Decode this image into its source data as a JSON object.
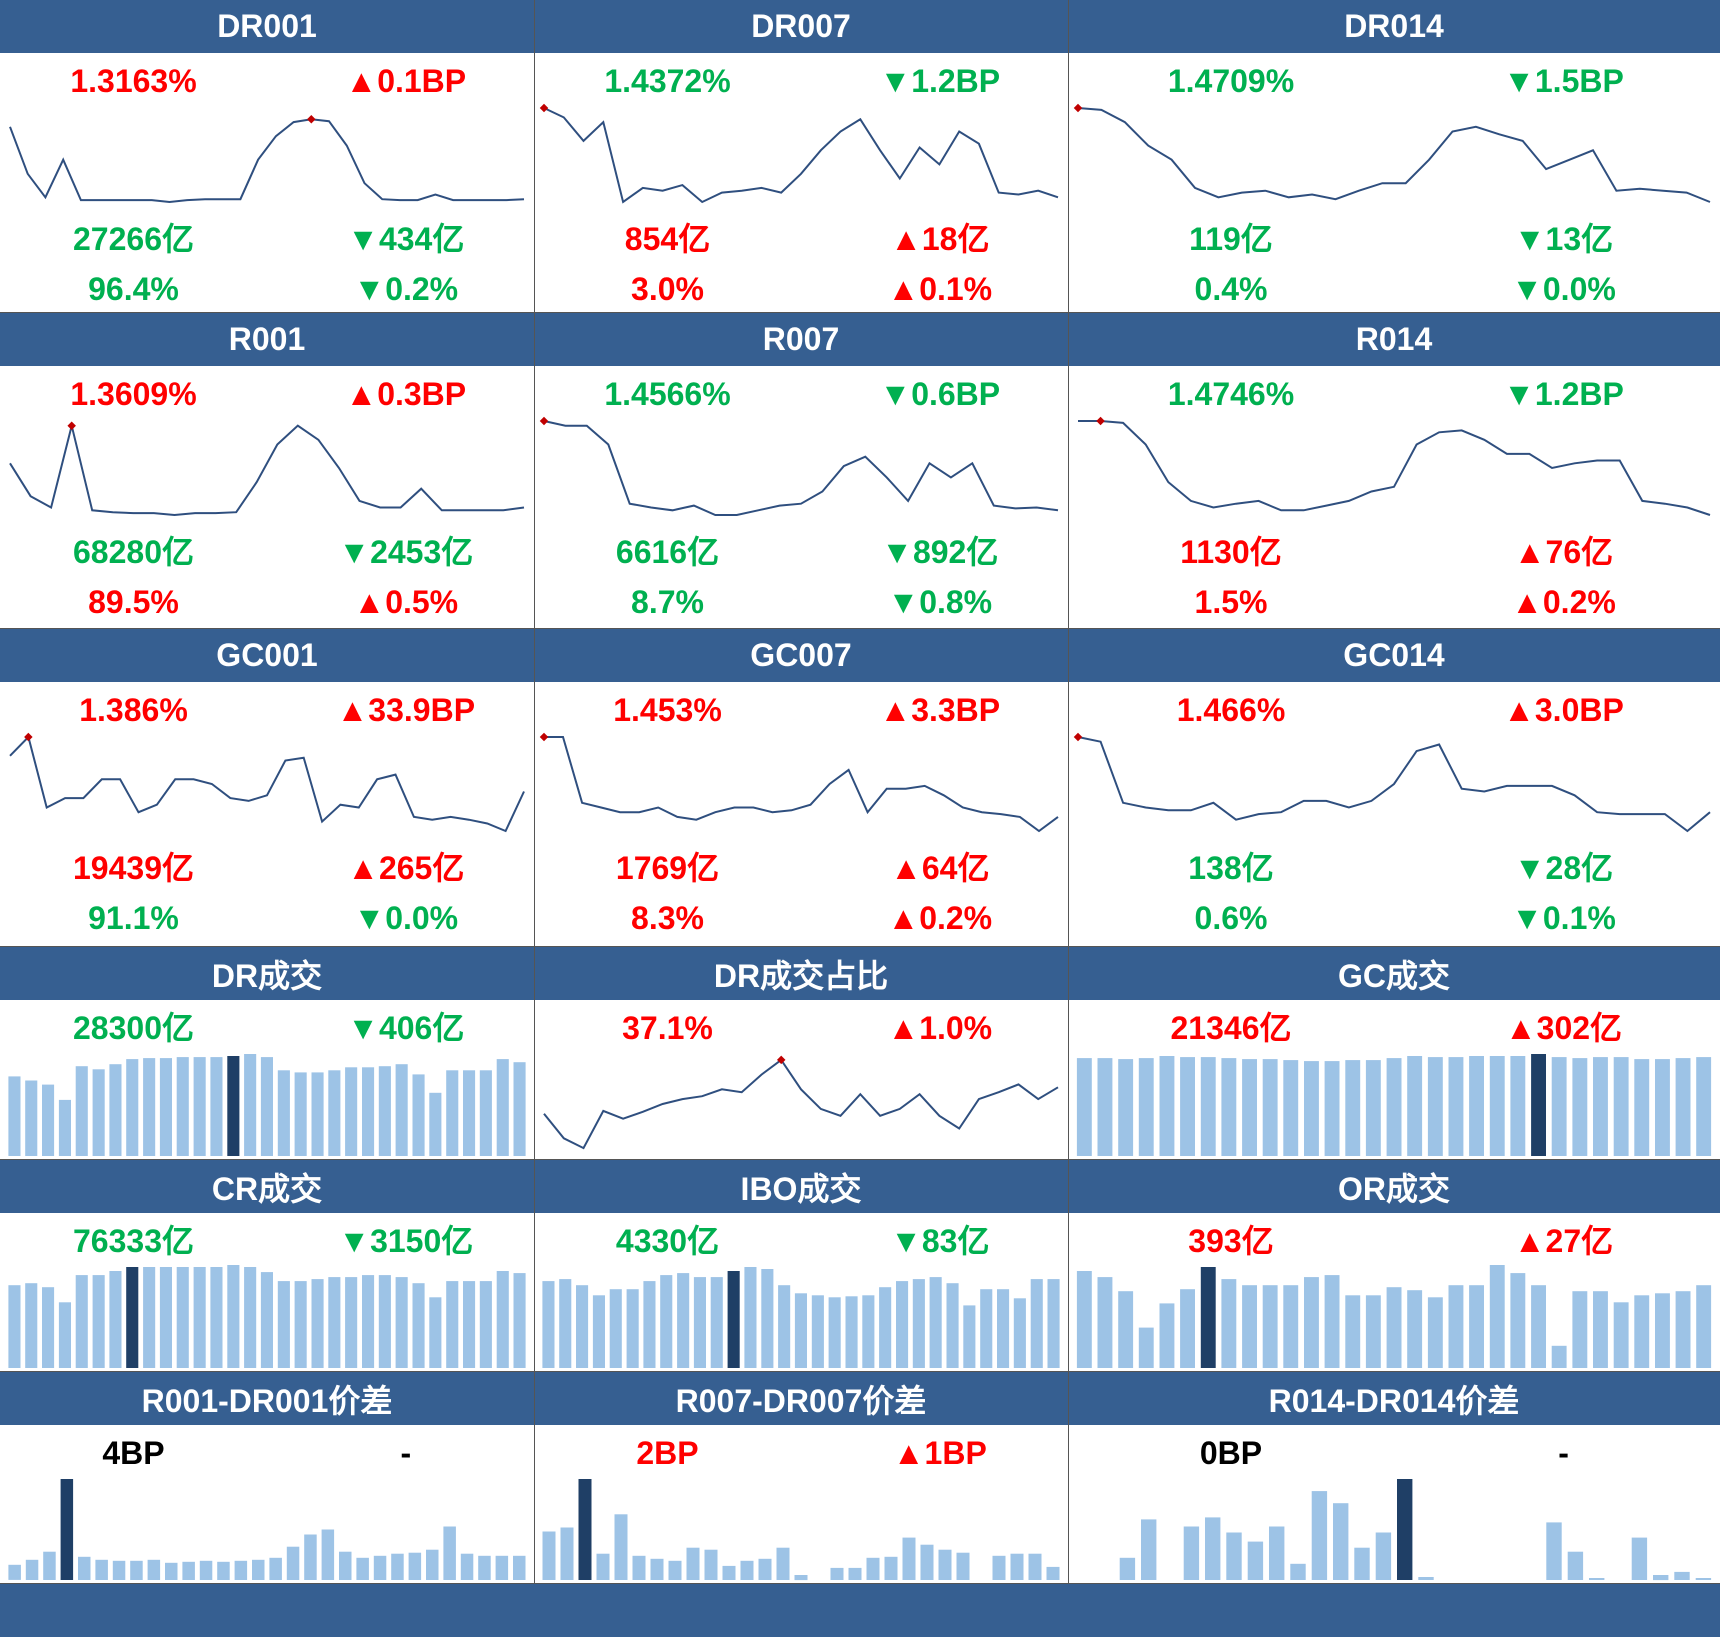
{
  "colors": {
    "header_bg": "#365f91",
    "header_text": "#ffffff",
    "up": "#ff0000",
    "down": "#00b050",
    "neutral": "#000000",
    "line": "#2f4f7f",
    "marker": "#c00000",
    "bar": "#9dc3e6",
    "bar_highlight": "#1f3f66"
  },
  "panels": [
    {
      "title": "DR001",
      "rate": {
        "text": "1.3163%",
        "dir": "up"
      },
      "rate_change": {
        "text": "▲0.1BP",
        "dir": "up"
      },
      "volume": {
        "text": "27266亿",
        "dir": "down"
      },
      "volume_change": {
        "text": "▼434亿",
        "dir": "down"
      },
      "share": {
        "text": "96.4%",
        "dir": "down"
      },
      "share_change": {
        "text": "▼0.2%",
        "dir": "down"
      },
      "chart_data": {
        "type": "line",
        "values": [
          0.8,
          0.3,
          0.05,
          0.45,
          0.02,
          0.02,
          0.02,
          0.02,
          0.02,
          0.0,
          0.02,
          0.03,
          0.03,
          0.03,
          0.45,
          0.7,
          0.85,
          0.88,
          0.86,
          0.6,
          0.2,
          0.03,
          0.02,
          0.02,
          0.08,
          0.02,
          0.02,
          0.02,
          0.02,
          0.03
        ],
        "marker_index": 17
      }
    },
    {
      "title": "DR007",
      "rate": {
        "text": "1.4372%",
        "dir": "down"
      },
      "rate_change": {
        "text": "▼1.2BP",
        "dir": "down"
      },
      "volume": {
        "text": "854亿",
        "dir": "up"
      },
      "volume_change": {
        "text": "▲18亿",
        "dir": "up"
      },
      "share": {
        "text": "3.0%",
        "dir": "up"
      },
      "share_change": {
        "text": "▲0.1%",
        "dir": "up"
      },
      "chart_data": {
        "type": "line",
        "values": [
          1.0,
          0.9,
          0.65,
          0.85,
          0.0,
          0.15,
          0.12,
          0.18,
          0.0,
          0.1,
          0.12,
          0.15,
          0.1,
          0.3,
          0.55,
          0.75,
          0.88,
          0.55,
          0.25,
          0.58,
          0.4,
          0.75,
          0.62,
          0.1,
          0.08,
          0.12,
          0.05
        ],
        "marker_index": 0
      }
    },
    {
      "title": "DR014",
      "rate": {
        "text": "1.4709%",
        "dir": "down"
      },
      "rate_change": {
        "text": "▼1.5BP",
        "dir": "down"
      },
      "volume": {
        "text": "119亿",
        "dir": "down"
      },
      "volume_change": {
        "text": "▼13亿",
        "dir": "down"
      },
      "share": {
        "text": "0.4%",
        "dir": "down"
      },
      "share_change": {
        "text": "▼0.0%",
        "dir": "down"
      },
      "chart_data": {
        "type": "line",
        "values": [
          1.0,
          0.98,
          0.85,
          0.6,
          0.45,
          0.15,
          0.05,
          0.1,
          0.12,
          0.05,
          0.08,
          0.03,
          0.12,
          0.2,
          0.2,
          0.45,
          0.75,
          0.8,
          0.72,
          0.65,
          0.35,
          0.45,
          0.55,
          0.12,
          0.14,
          0.12,
          0.1,
          0.0
        ],
        "marker_index": 0
      }
    },
    {
      "title": "R001",
      "rate": {
        "text": "1.3609%",
        "dir": "up"
      },
      "rate_change": {
        "text": "▲0.3BP",
        "dir": "up"
      },
      "volume": {
        "text": "68280亿",
        "dir": "down"
      },
      "volume_change": {
        "text": "▼2453亿",
        "dir": "down"
      },
      "share": {
        "text": "89.5%",
        "dir": "up"
      },
      "share_change": {
        "text": "▲0.5%",
        "dir": "up"
      },
      "chart_data": {
        "type": "line",
        "values": [
          0.55,
          0.2,
          0.08,
          0.95,
          0.05,
          0.03,
          0.02,
          0.02,
          0.0,
          0.02,
          0.02,
          0.03,
          0.35,
          0.75,
          0.95,
          0.8,
          0.5,
          0.15,
          0.08,
          0.08,
          0.28,
          0.05,
          0.05,
          0.05,
          0.05,
          0.08
        ],
        "marker_index": 3
      }
    },
    {
      "title": "R007",
      "rate": {
        "text": "1.4566%",
        "dir": "down"
      },
      "rate_change": {
        "text": "▼0.6BP",
        "dir": "down"
      },
      "volume": {
        "text": "6616亿",
        "dir": "down"
      },
      "volume_change": {
        "text": "▼892亿",
        "dir": "down"
      },
      "share": {
        "text": "8.7%",
        "dir": "down"
      },
      "share_change": {
        "text": "▼0.8%",
        "dir": "down"
      },
      "chart_data": {
        "type": "line",
        "values": [
          1.0,
          0.95,
          0.95,
          0.75,
          0.12,
          0.08,
          0.05,
          0.1,
          0.0,
          0.0,
          0.05,
          0.1,
          0.12,
          0.25,
          0.52,
          0.62,
          0.4,
          0.15,
          0.55,
          0.4,
          0.55,
          0.1,
          0.07,
          0.08,
          0.05
        ],
        "marker_index": 0
      }
    },
    {
      "title": "R014",
      "rate": {
        "text": "1.4746%",
        "dir": "down"
      },
      "rate_change": {
        "text": "▼1.2BP",
        "dir": "down"
      },
      "volume": {
        "text": "1130亿",
        "dir": "up"
      },
      "volume_change": {
        "text": "▲76亿",
        "dir": "up"
      },
      "share": {
        "text": "1.5%",
        "dir": "up"
      },
      "share_change": {
        "text": "▲0.2%",
        "dir": "up"
      },
      "chart_data": {
        "type": "line",
        "values": [
          1.0,
          1.0,
          0.98,
          0.75,
          0.35,
          0.15,
          0.08,
          0.12,
          0.15,
          0.05,
          0.05,
          0.1,
          0.15,
          0.25,
          0.3,
          0.75,
          0.88,
          0.9,
          0.8,
          0.65,
          0.65,
          0.5,
          0.55,
          0.58,
          0.58,
          0.15,
          0.12,
          0.08,
          0.0
        ],
        "marker_index": 1
      }
    },
    {
      "title": "GC001",
      "rate": {
        "text": "1.386%",
        "dir": "up"
      },
      "rate_change": {
        "text": "▲33.9BP",
        "dir": "up"
      },
      "volume": {
        "text": "19439亿",
        "dir": "up"
      },
      "volume_change": {
        "text": "▲265亿",
        "dir": "up"
      },
      "share": {
        "text": "91.1%",
        "dir": "down"
      },
      "share_change": {
        "text": "▼0.0%",
        "dir": "down"
      },
      "chart_data": {
        "type": "line",
        "values": [
          0.8,
          1.0,
          0.25,
          0.35,
          0.35,
          0.55,
          0.55,
          0.2,
          0.28,
          0.55,
          0.55,
          0.5,
          0.35,
          0.32,
          0.38,
          0.75,
          0.78,
          0.1,
          0.28,
          0.25,
          0.55,
          0.6,
          0.15,
          0.12,
          0.15,
          0.12,
          0.08,
          0.0,
          0.42
        ],
        "marker_index": 1
      }
    },
    {
      "title": "GC007",
      "rate": {
        "text": "1.453%",
        "dir": "up"
      },
      "rate_change": {
        "text": "▲3.3BP",
        "dir": "up"
      },
      "volume": {
        "text": "1769亿",
        "dir": "up"
      },
      "volume_change": {
        "text": "▲64亿",
        "dir": "up"
      },
      "share": {
        "text": "8.3%",
        "dir": "up"
      },
      "share_change": {
        "text": "▲0.2%",
        "dir": "up"
      },
      "chart_data": {
        "type": "line",
        "values": [
          1.0,
          1.0,
          0.3,
          0.25,
          0.2,
          0.2,
          0.25,
          0.15,
          0.12,
          0.2,
          0.25,
          0.25,
          0.2,
          0.22,
          0.28,
          0.5,
          0.65,
          0.2,
          0.45,
          0.45,
          0.48,
          0.38,
          0.25,
          0.2,
          0.18,
          0.15,
          0.0,
          0.15
        ],
        "marker_index": 0
      }
    },
    {
      "title": "GC014",
      "rate": {
        "text": "1.466%",
        "dir": "up"
      },
      "rate_change": {
        "text": "▲3.0BP",
        "dir": "up"
      },
      "volume": {
        "text": "138亿",
        "dir": "down"
      },
      "volume_change": {
        "text": "▼28亿",
        "dir": "down"
      },
      "share": {
        "text": "0.6%",
        "dir": "down"
      },
      "share_change": {
        "text": "▼0.1%",
        "dir": "down"
      },
      "chart_data": {
        "type": "line",
        "values": [
          1.0,
          0.95,
          0.3,
          0.25,
          0.22,
          0.22,
          0.3,
          0.12,
          0.18,
          0.2,
          0.32,
          0.32,
          0.25,
          0.32,
          0.5,
          0.85,
          0.92,
          0.45,
          0.42,
          0.48,
          0.48,
          0.48,
          0.38,
          0.2,
          0.18,
          0.18,
          0.18,
          0.0,
          0.2
        ],
        "marker_index": 0
      }
    },
    {
      "title": "DR成交",
      "rate": {
        "text": "28300亿",
        "dir": "down"
      },
      "rate_change": {
        "text": "▼406亿",
        "dir": "down"
      },
      "chart_data": {
        "type": "bar",
        "values": [
          0.78,
          0.74,
          0.7,
          0.55,
          0.88,
          0.85,
          0.9,
          0.95,
          0.96,
          0.96,
          0.97,
          0.97,
          0.97,
          0.98,
          1.0,
          0.97,
          0.84,
          0.82,
          0.82,
          0.84,
          0.87,
          0.87,
          0.88,
          0.9,
          0.8,
          0.62,
          0.84,
          0.84,
          0.84,
          0.95,
          0.92
        ],
        "highlight_index": 13
      }
    },
    {
      "title": "DR成交占比",
      "rate": {
        "text": "37.1%",
        "dir": "up"
      },
      "rate_change": {
        "text": "▲1.0%",
        "dir": "up"
      },
      "chart_data": {
        "type": "line",
        "values": [
          0.4,
          0.15,
          0.05,
          0.43,
          0.35,
          0.42,
          0.5,
          0.55,
          0.58,
          0.65,
          0.62,
          0.8,
          0.95,
          0.65,
          0.45,
          0.38,
          0.6,
          0.38,
          0.45,
          0.6,
          0.38,
          0.25,
          0.55,
          0.62,
          0.7,
          0.55,
          0.67
        ],
        "marker_index": 12
      }
    },
    {
      "title": "GC成交",
      "rate": {
        "text": "21346亿",
        "dir": "up"
      },
      "rate_change": {
        "text": "▲302亿",
        "dir": "up"
      },
      "chart_data": {
        "type": "bar",
        "values": [
          0.96,
          0.96,
          0.95,
          0.96,
          0.98,
          0.97,
          0.97,
          0.96,
          0.95,
          0.95,
          0.94,
          0.93,
          0.93,
          0.94,
          0.94,
          0.96,
          0.98,
          0.97,
          0.97,
          0.98,
          0.98,
          0.98,
          1.0,
          0.97,
          0.96,
          0.97,
          0.97,
          0.95,
          0.95,
          0.96,
          0.97
        ],
        "highlight_index": 22
      }
    },
    {
      "title": "CR成交",
      "rate": {
        "text": "76333亿",
        "dir": "down"
      },
      "rate_change": {
        "text": "▼3150亿",
        "dir": "down"
      },
      "chart_data": {
        "type": "bar",
        "values": [
          0.82,
          0.84,
          0.8,
          0.65,
          0.92,
          0.92,
          0.96,
          1.0,
          1.0,
          1.0,
          1.0,
          1.0,
          1.0,
          1.02,
          1.0,
          0.95,
          0.86,
          0.86,
          0.88,
          0.9,
          0.9,
          0.92,
          0.92,
          0.9,
          0.84,
          0.7,
          0.86,
          0.86,
          0.86,
          0.96,
          0.94
        ],
        "highlight_index": 7
      }
    },
    {
      "title": "IBO成交",
      "rate": {
        "text": "4330亿",
        "dir": "down"
      },
      "rate_change": {
        "text": "▼83亿",
        "dir": "down"
      },
      "chart_data": {
        "type": "bar",
        "values": [
          0.86,
          0.88,
          0.82,
          0.72,
          0.78,
          0.78,
          0.86,
          0.92,
          0.94,
          0.9,
          0.9,
          0.96,
          1.0,
          0.98,
          0.82,
          0.74,
          0.72,
          0.7,
          0.71,
          0.72,
          0.8,
          0.86,
          0.88,
          0.9,
          0.84,
          0.62,
          0.78,
          0.78,
          0.69,
          0.88,
          0.88
        ],
        "highlight_index": 11
      }
    },
    {
      "title": "OR成交",
      "rate": {
        "text": "393亿",
        "dir": "up"
      },
      "rate_change": {
        "text": "▲27亿",
        "dir": "up"
      },
      "chart_data": {
        "type": "bar",
        "values": [
          0.96,
          0.9,
          0.76,
          0.4,
          0.64,
          0.78,
          1.0,
          0.88,
          0.82,
          0.82,
          0.82,
          0.9,
          0.92,
          0.72,
          0.72,
          0.8,
          0.77,
          0.7,
          0.82,
          0.82,
          1.02,
          0.94,
          0.82,
          0.22,
          0.76,
          0.76,
          0.65,
          0.72,
          0.74,
          0.76,
          0.82
        ],
        "highlight_index": 6
      }
    },
    {
      "title": "R001-DR001价差",
      "rate": {
        "text": "4BP",
        "dir": "neutral"
      },
      "rate_change": {
        "text": "-",
        "dir": "neutral"
      },
      "chart_data": {
        "type": "bar",
        "values": [
          0.15,
          0.2,
          0.28,
          1.0,
          0.23,
          0.2,
          0.19,
          0.19,
          0.2,
          0.17,
          0.18,
          0.19,
          0.18,
          0.19,
          0.2,
          0.22,
          0.33,
          0.45,
          0.5,
          0.28,
          0.22,
          0.24,
          0.26,
          0.27,
          0.3,
          0.53,
          0.26,
          0.24,
          0.24,
          0.24
        ],
        "highlight_index": 3
      }
    },
    {
      "title": "R007-DR007价差",
      "rate": {
        "text": "2BP",
        "dir": "up"
      },
      "rate_change": {
        "text": "▲1BP",
        "dir": "up"
      },
      "chart_data": {
        "type": "bar",
        "values": [
          0.48,
          0.52,
          1.0,
          0.26,
          0.65,
          0.24,
          0.21,
          0.19,
          0.32,
          0.3,
          0.14,
          0.19,
          0.21,
          0.32,
          0.05,
          0.0,
          0.12,
          0.12,
          0.22,
          0.23,
          0.42,
          0.35,
          0.3,
          0.27,
          0.0,
          0.24,
          0.26,
          0.26,
          0.13
        ],
        "highlight_index": 2
      }
    },
    {
      "title": "R014-DR014价差",
      "rate": {
        "text": "0BP",
        "dir": "neutral"
      },
      "rate_change": {
        "text": "-",
        "dir": "neutral"
      },
      "chart_data": {
        "type": "bar",
        "values": [
          0.0,
          0.0,
          0.22,
          0.6,
          0.0,
          0.53,
          0.62,
          0.47,
          0.38,
          0.53,
          0.16,
          0.88,
          0.76,
          0.32,
          0.47,
          1.0,
          0.03,
          0.0,
          0.0,
          0.0,
          0.0,
          0.0,
          0.57,
          0.28,
          0.02,
          0.0,
          0.42,
          0.05,
          0.08,
          0.02
        ],
        "highlight_index": 15
      }
    }
  ]
}
